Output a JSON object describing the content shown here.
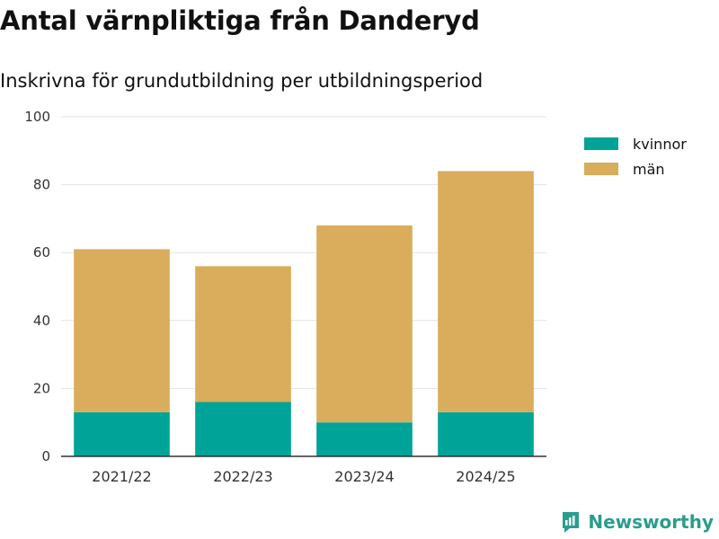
{
  "header": {
    "title": "Antal värnpliktiga från Danderyd",
    "subtitle": "Inskrivna för grundutbildning per utbildningsperiod"
  },
  "legend": [
    {
      "label": "kvinnor",
      "color": "#00a398"
    },
    {
      "label": "män",
      "color": "#d9ad5c"
    }
  ],
  "brand": {
    "name": "Newsworthy",
    "icon": "newsworthy-logo-icon",
    "color": "#2a9d8f"
  },
  "chart_data": {
    "type": "bar",
    "stacked": true,
    "title": "Antal värnpliktiga från Danderyd",
    "subtitle": "Inskrivna för grundutbildning per utbildningsperiod",
    "xlabel": "",
    "ylabel": "",
    "categories": [
      "2021/22",
      "2022/23",
      "2023/24",
      "2024/25"
    ],
    "series": [
      {
        "name": "kvinnor",
        "color": "#00a398",
        "values": [
          13,
          16,
          10,
          13
        ]
      },
      {
        "name": "män",
        "color": "#d9ad5c",
        "values": [
          48,
          40,
          58,
          71
        ]
      }
    ],
    "ylim": [
      0,
      100
    ],
    "yticks": [
      "0",
      "20",
      "40",
      "60",
      "80",
      "100"
    ],
    "grid": true,
    "legend_position": "top-right"
  }
}
